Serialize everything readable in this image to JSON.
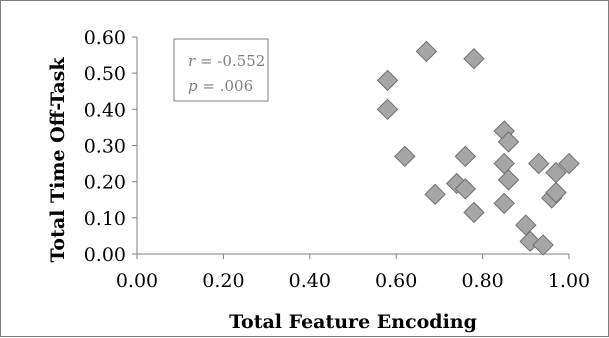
{
  "chart_data": {
    "type": "scatter",
    "title": "",
    "xlabel": "Total Feature Encoding",
    "ylabel": "Total Time Off-Task",
    "xlim": [
      0.0,
      1.0
    ],
    "ylim": [
      0.0,
      0.6
    ],
    "x_ticks": [
      "0.00",
      "0.20",
      "0.40",
      "0.60",
      "0.80",
      "1.00"
    ],
    "y_ticks": [
      "0.00",
      "0.10",
      "0.20",
      "0.30",
      "0.40",
      "0.50",
      "0.60"
    ],
    "grid": false,
    "legend": "none",
    "marker": "diamond",
    "marker_color": "#a6a6a6",
    "annotation": {
      "r_symbol": "r",
      "r_value": " = -0.552",
      "p_symbol": "p",
      "p_value": " = .006"
    },
    "series": [
      {
        "points": [
          [
            0.58,
            0.48
          ],
          [
            0.58,
            0.4
          ],
          [
            0.67,
            0.56
          ],
          [
            0.78,
            0.54
          ],
          [
            0.62,
            0.27
          ],
          [
            0.69,
            0.165
          ],
          [
            0.74,
            0.195
          ],
          [
            0.76,
            0.27
          ],
          [
            0.76,
            0.18
          ],
          [
            0.78,
            0.115
          ],
          [
            0.85,
            0.34
          ],
          [
            0.86,
            0.31
          ],
          [
            0.85,
            0.25
          ],
          [
            0.86,
            0.205
          ],
          [
            0.85,
            0.14
          ],
          [
            0.9,
            0.08
          ],
          [
            0.91,
            0.035
          ],
          [
            0.94,
            0.025
          ],
          [
            0.93,
            0.25
          ],
          [
            0.96,
            0.155
          ],
          [
            0.97,
            0.225
          ],
          [
            0.97,
            0.17
          ],
          [
            1.0,
            0.25
          ]
        ]
      }
    ]
  }
}
